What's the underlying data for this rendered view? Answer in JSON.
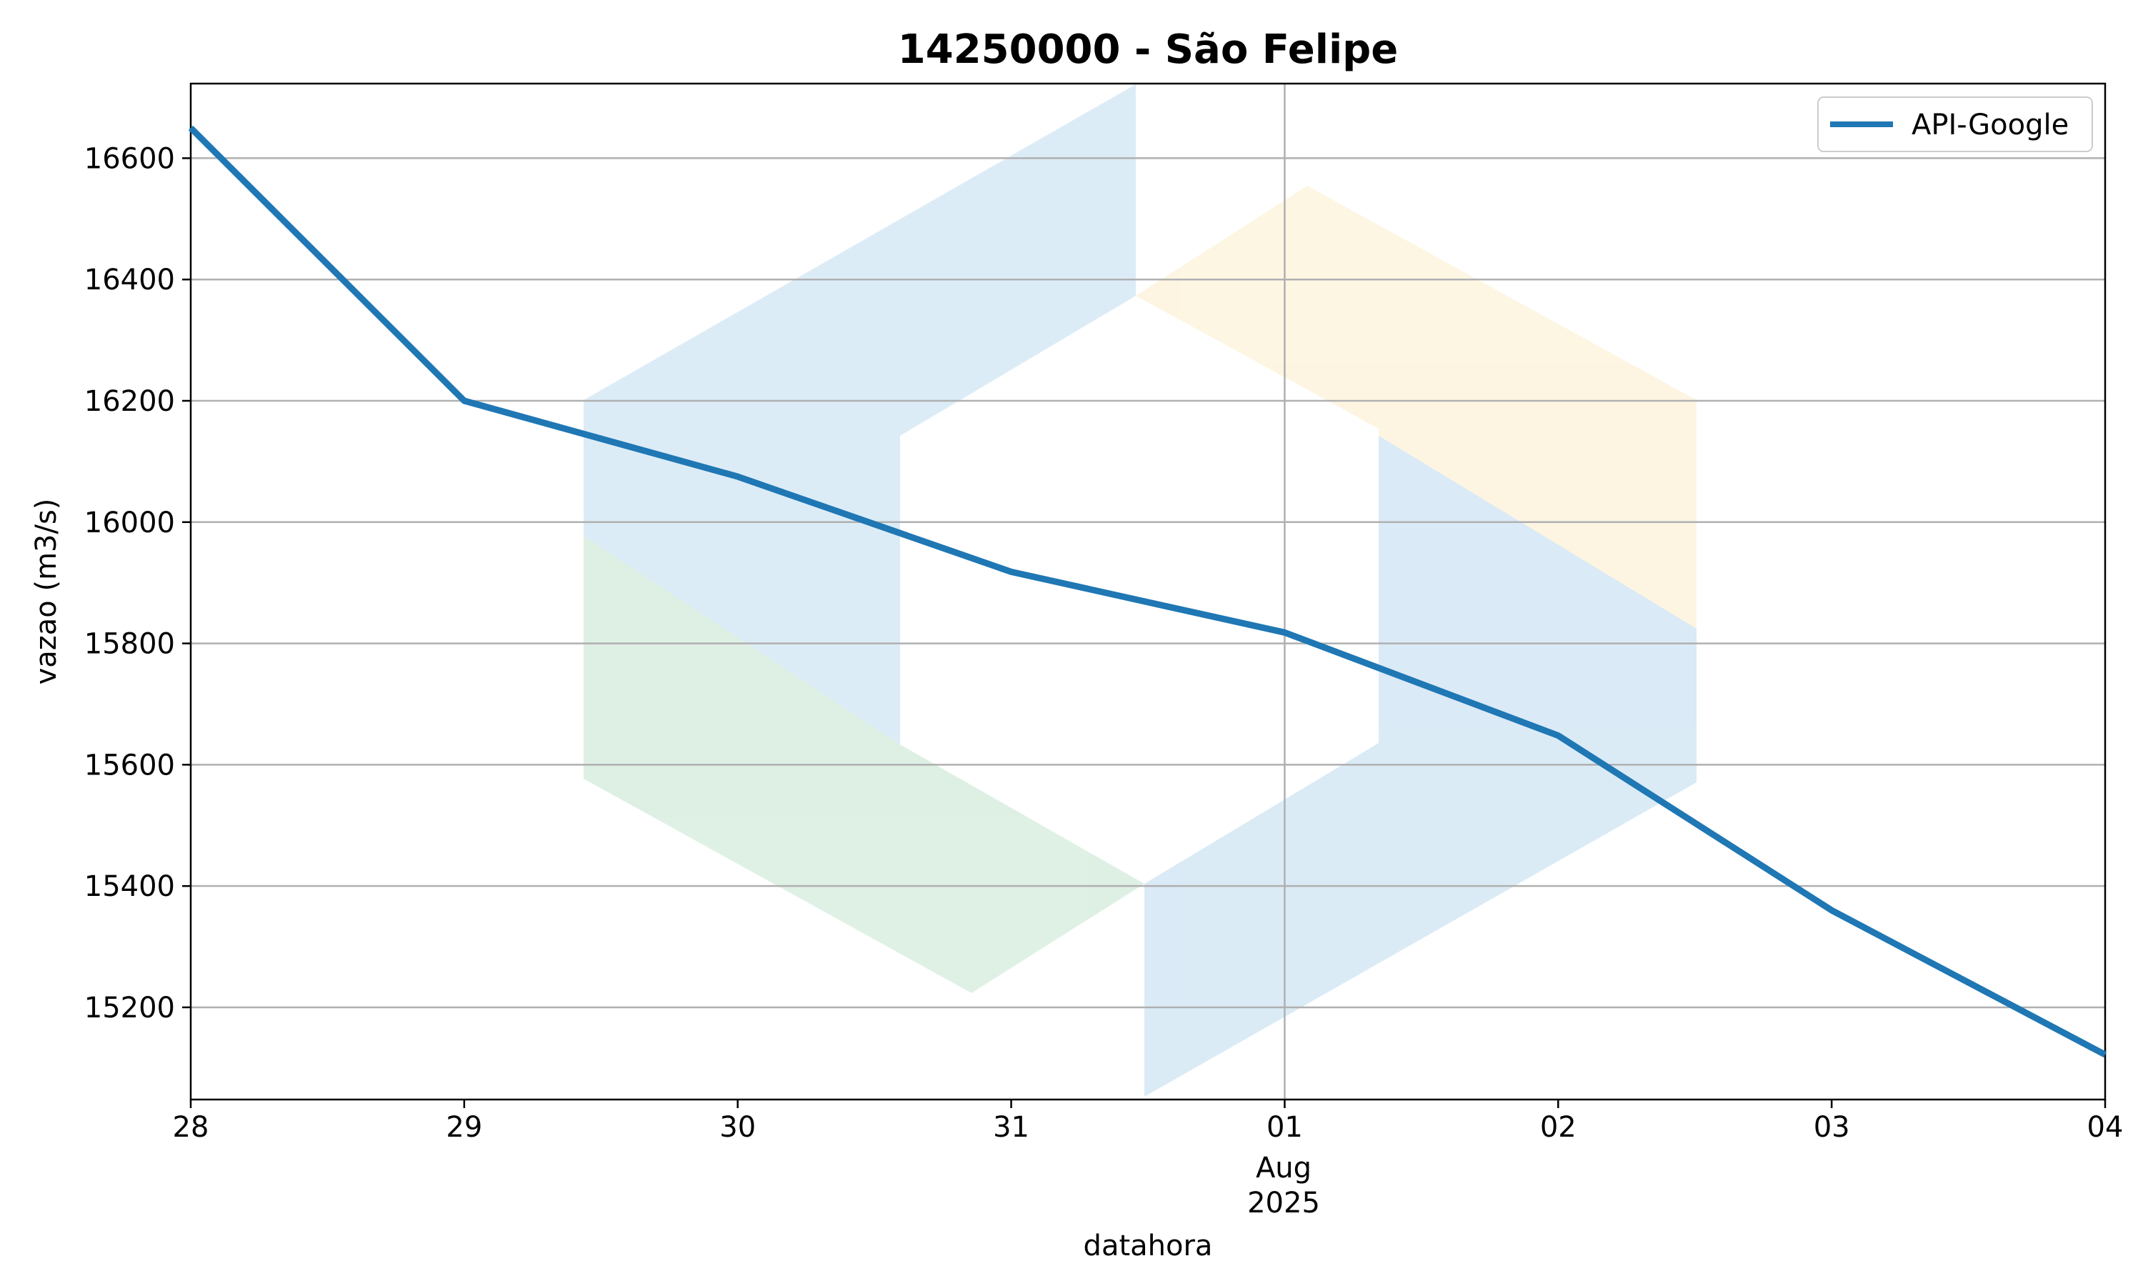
{
  "chart_data": {
    "type": "line",
    "title": "14250000 - São Felipe",
    "xlabel": "datahora",
    "ylabel": "vazao (m3/s)",
    "x": [
      "2025-07-28",
      "2025-07-29",
      "2025-07-30",
      "2025-07-31",
      "2025-08-01",
      "2025-08-02",
      "2025-08-03",
      "2025-08-04"
    ],
    "series": [
      {
        "name": "API-Google",
        "color": "#1f77b4",
        "values": [
          16650,
          16200,
          16075,
          15918,
          15818,
          15648,
          15360,
          15122
        ]
      }
    ],
    "xlim": [
      "2025-07-28",
      "2025-08-04"
    ],
    "ylim": [
      15048,
      16723
    ],
    "yticks": [
      15200,
      15400,
      15600,
      15800,
      16000,
      16200,
      16400,
      16600
    ],
    "xtick_labels": [
      "28",
      "29",
      "30",
      "31",
      "01",
      "02",
      "03",
      "04"
    ],
    "xtick_sublabel": {
      "text_month": "Aug",
      "text_year": "2025"
    },
    "grid": true,
    "legend_position": "upper right",
    "watermark_colors": [
      "#d9ecf8",
      "#d5e6f4",
      "#fdf5de",
      "#d9eee0"
    ]
  }
}
